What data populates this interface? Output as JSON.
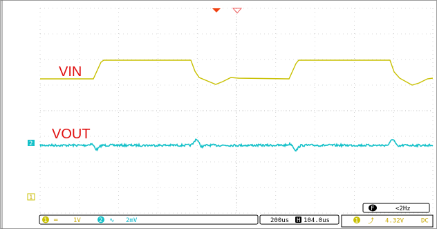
{
  "colors": {
    "ch1": "#c8c000",
    "ch2": "#12c0c8",
    "grid": "#a0a0a0",
    "label": "#e01010",
    "trigger": "#f04010"
  },
  "labels": {
    "vin": "VIN",
    "vout": "VOUT"
  },
  "markers": {
    "ch2": "2",
    "ch1": "1"
  },
  "status": {
    "ch1_num": "1",
    "ch1_coupling": "═",
    "ch1_scale": "1V",
    "ch2_num": "2",
    "ch2_coupling": "∿",
    "ch2_scale": "2mV",
    "timebase": "200us",
    "h_icon": "H",
    "h_position": "104.0us",
    "trig_num": "1",
    "trig_slope": "⤴",
    "trig_level": "4.32V",
    "trig_coupling": "DC",
    "freq_icon": "F",
    "frequency": "<2Hz"
  }
}
